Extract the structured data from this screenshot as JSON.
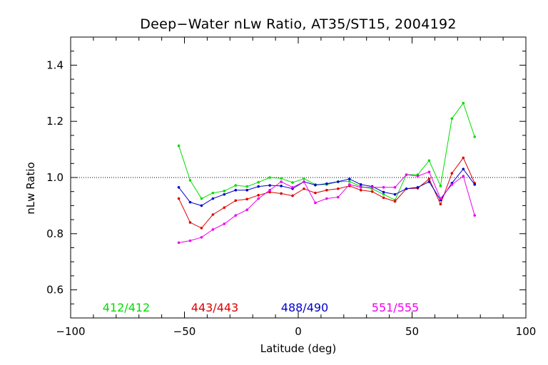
{
  "chart_data": {
    "type": "line",
    "title": "Deep−Water nLw Ratio, AT35/ST15, 2004192",
    "xlabel": "Latitude (deg)",
    "ylabel": "nLw Ratio",
    "xlim": [
      -100,
      100
    ],
    "ylim": [
      0.5,
      1.5
    ],
    "x_ticks": [
      -100,
      -50,
      0,
      50,
      100
    ],
    "x_tick_labels": [
      "−100",
      "−50",
      "0",
      "50",
      "100"
    ],
    "y_ticks": [
      0.6,
      0.8,
      1.0,
      1.2,
      1.4
    ],
    "y_tick_labels": [
      "0.6",
      "0.8",
      "1.0",
      "1.2",
      "1.4"
    ],
    "reference_line": 1.0,
    "legend_placement": "bottom",
    "x": [
      -52.5,
      -47.5,
      -42.5,
      -37.5,
      -32.5,
      -27.5,
      -22.5,
      -17.5,
      -12.5,
      -7.5,
      -2.5,
      2.5,
      7.5,
      12.5,
      17.5,
      22.5,
      27.5,
      32.5,
      37.5,
      42.5,
      47.5,
      52.5,
      57.5,
      62.5,
      67.5,
      72.5,
      77.5
    ],
    "series": [
      {
        "name": "412/412",
        "color": "#00dd00",
        "values": [
          1.113,
          0.99,
          0.925,
          0.945,
          0.952,
          0.972,
          0.968,
          0.983,
          1.0,
          0.997,
          0.982,
          0.996,
          0.975,
          0.975,
          0.985,
          0.986,
          0.968,
          0.96,
          0.94,
          0.92,
          1.01,
          1.01,
          1.06,
          0.97,
          1.21,
          1.265,
          1.145
        ]
      },
      {
        "name": "443/443",
        "color": "#dd0000",
        "values": [
          0.925,
          0.84,
          0.82,
          0.868,
          0.893,
          0.918,
          0.923,
          0.937,
          0.948,
          0.943,
          0.935,
          0.96,
          0.945,
          0.955,
          0.96,
          0.97,
          0.955,
          0.95,
          0.928,
          0.915,
          0.96,
          0.962,
          0.995,
          0.905,
          1.015,
          1.07,
          0.98
        ]
      },
      {
        "name": "488/490",
        "color": "#0000cc",
        "values": [
          0.965,
          0.912,
          0.9,
          0.925,
          0.94,
          0.955,
          0.955,
          0.968,
          0.972,
          0.97,
          0.96,
          0.985,
          0.973,
          0.978,
          0.985,
          0.995,
          0.975,
          0.968,
          0.948,
          0.94,
          0.96,
          0.965,
          0.985,
          0.92,
          0.98,
          1.03,
          0.975
        ]
      },
      {
        "name": "551/555",
        "color": "#ee00ee",
        "values": [
          0.768,
          0.775,
          0.787,
          0.815,
          0.835,
          0.865,
          0.885,
          0.925,
          0.955,
          0.985,
          0.965,
          0.985,
          0.91,
          0.925,
          0.93,
          0.975,
          0.965,
          0.965,
          0.965,
          0.965,
          1.01,
          1.005,
          1.02,
          0.925,
          0.975,
          1.005,
          0.865
        ]
      }
    ]
  }
}
